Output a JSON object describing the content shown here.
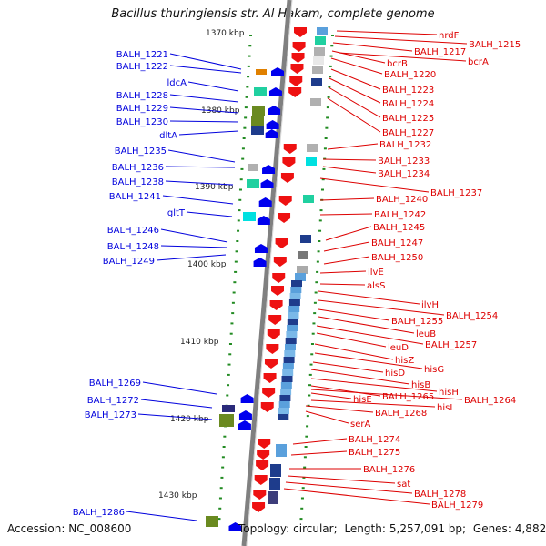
{
  "title": "Bacillus thuringiensis str. Al Hakam, complete genome",
  "footer": {
    "accession_label": "Accession:",
    "accession": "NC_008600",
    "topology_label": "Topology:",
    "topology": "circular;",
    "length_label": "Length:",
    "length": "5,257,091 bp;",
    "genes_label": "Genes:",
    "genes": "4,882"
  },
  "colors": {
    "forward_label": "#0000dd",
    "reverse_label": "#dd0000",
    "backbone": "#808080",
    "scale_tick": "#228b22",
    "reverse_feature": "#ee1111",
    "forward_feature": "#0000ee",
    "expression_high": "#1e3c8c",
    "expression_mid": "#5aa0dc",
    "expression_low": "#00e0e0",
    "expression_neutral": "#b0b0b0",
    "expression_green": "#20d0a0",
    "olive": "#6a8a20",
    "orange": "#e08000"
  },
  "scale_labels": [
    "1370 kbp",
    "1380 kbp",
    "1390 kbp",
    "1400 kbp",
    "1410 kbp",
    "1420 kbp",
    "1430 kbp"
  ],
  "forward_genes": [
    "BALH_1221",
    "BALH_1222",
    "ldcA",
    "BALH_1228",
    "BALH_1229",
    "BALH_1230",
    "dltA",
    "BALH_1235",
    "BALH_1236",
    "BALH_1238",
    "BALH_1241",
    "gltT",
    "BALH_1246",
    "BALH_1248",
    "BALH_1249",
    "BALH_1269",
    "BALH_1272",
    "BALH_1273",
    "BALH_1286"
  ],
  "reverse_genes": [
    "nrdF",
    "BALH_1215",
    "BALH_1217",
    "bcrB",
    "bcrA",
    "BALH_1220",
    "BALH_1223",
    "BALH_1224",
    "BALH_1225",
    "BALH_1227",
    "BALH_1232",
    "BALH_1233",
    "BALH_1234",
    "BALH_1237",
    "BALH_1240",
    "BALH_1242",
    "BALH_1245",
    "BALH_1247",
    "BALH_1250",
    "ilvE",
    "alsS",
    "ilvH",
    "BALH_1254",
    "BALH_1255",
    "leuB",
    "BALH_1257",
    "leuD",
    "hisZ",
    "hisG",
    "hisD",
    "hisB",
    "hisH",
    "hisE",
    "BALH_1265",
    "BALH_1264",
    "hisI",
    "BALH_1268",
    "serA",
    "BALH_1274",
    "BALH_1275",
    "BALH_1276",
    "sat",
    "BALH_1278",
    "BALH_1279"
  ]
}
